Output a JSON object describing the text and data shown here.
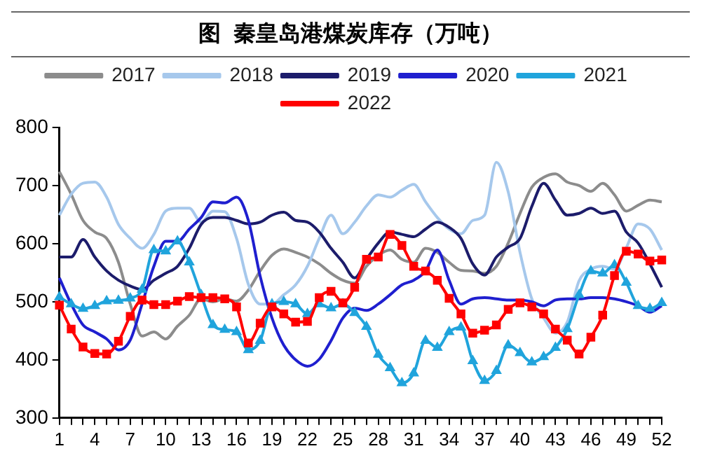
{
  "chart_data": {
    "type": "line",
    "title": "图  秦皇岛港煤炭库存（万吨）",
    "categories": [
      "1",
      null,
      null,
      "4",
      null,
      null,
      "7",
      null,
      null,
      "10",
      null,
      null,
      "13",
      null,
      null,
      "16",
      null,
      null,
      "19",
      null,
      null,
      "22",
      null,
      null,
      "25",
      null,
      null,
      "28",
      null,
      null,
      "31",
      null,
      null,
      "34",
      null,
      null,
      "37",
      null,
      null,
      "40",
      null,
      null,
      "43",
      null,
      null,
      "46",
      null,
      null,
      "49",
      null,
      null,
      "52"
    ],
    "ylim": [
      300,
      800
    ],
    "yticks": [
      300,
      400,
      500,
      600,
      700,
      800
    ],
    "grid": false,
    "legend": "top",
    "marker": "none",
    "series": [
      {
        "name": "2017",
        "color": "#8c8c8c",
        "values": [
          724,
          685,
          640,
          620,
          609,
          568,
          496,
          441,
          448,
          436,
          458,
          477,
          505,
          500,
          505,
          501,
          520,
          553,
          580,
          591,
          585,
          577,
          565,
          549,
          537,
          532,
          561,
          580,
          589,
          573,
          568,
          592,
          585,
          568,
          554,
          553,
          549,
          561,
          601,
          652,
          697,
          714,
          720,
          706,
          700,
          690,
          704,
          684,
          656,
          666,
          675,
          672
        ]
      },
      {
        "name": "2018",
        "color": "#a6c8ec",
        "values": [
          649,
          685,
          704,
          706,
          680,
          633,
          609,
          592,
          616,
          656,
          661,
          661,
          637,
          656,
          655,
          609,
          530,
          496,
          496,
          512,
          529,
          561,
          609,
          649,
          617,
          637,
          665,
          684,
          680,
          692,
          702,
          672,
          645,
          625,
          617,
          640,
          649,
          740,
          689,
          585,
          505,
          472,
          446,
          465,
          536,
          556,
          561,
          556,
          593,
          634,
          625,
          589
        ]
      },
      {
        "name": "2019",
        "color": "#1c1c6b",
        "values": [
          577,
          577,
          607,
          577,
          553,
          537,
          527,
          521,
          537,
          549,
          561,
          592,
          633,
          645,
          645,
          640,
          634,
          637,
          649,
          654,
          640,
          637,
          620,
          592,
          568,
          541,
          573,
          601,
          620,
          616,
          612,
          625,
          637,
          628,
          609,
          565,
          546,
          577,
          594,
          609,
          664,
          704,
          675,
          649,
          652,
          661,
          652,
          656,
          620,
          601,
          565,
          525
        ]
      },
      {
        "name": "2020",
        "color": "#1f1fcf",
        "values": [
          541,
          496,
          460,
          448,
          436,
          417,
          434,
          496,
          561,
          604,
          604,
          625,
          645,
          672,
          670,
          680,
          640,
          544,
          472,
          425,
          400,
          389,
          401,
          433,
          472,
          489,
          485,
          496,
          512,
          529,
          537,
          553,
          589,
          537,
          496,
          505,
          507,
          505,
          503,
          503,
          500,
          493,
          503,
          505,
          505,
          507,
          507,
          505,
          500,
          493,
          482,
          493
        ]
      },
      {
        "name": "2021",
        "color": "#20a4dc",
        "marker": "triangle",
        "values": [
          508,
          496,
          488,
          493,
          501,
          502,
          506,
          521,
          589,
          587,
          604,
          568,
          512,
          460,
          452,
          448,
          417,
          433,
          496,
          500,
          496,
          479,
          496,
          489,
          496,
          481,
          457,
          409,
          386,
          360,
          377,
          433,
          421,
          448,
          456,
          398,
          364,
          381,
          425,
          412,
          396,
          405,
          421,
          453,
          512,
          553,
          549,
          563,
          533,
          493,
          488,
          498
        ]
      },
      {
        "name": "2022",
        "color": "#ff0000",
        "marker": "square",
        "values": [
          494,
          453,
          422,
          411,
          410,
          432,
          475,
          503,
          495,
          495,
          501,
          509,
          507,
          507,
          505,
          491,
          429,
          463,
          491,
          479,
          465,
          466,
          507,
          518,
          498,
          525,
          573,
          577,
          616,
          597,
          561,
          553,
          537,
          506,
          479,
          446,
          451,
          460,
          487,
          498,
          491,
          479,
          453,
          434,
          410,
          439,
          477,
          545,
          587,
          582,
          570,
          572
        ]
      }
    ]
  }
}
